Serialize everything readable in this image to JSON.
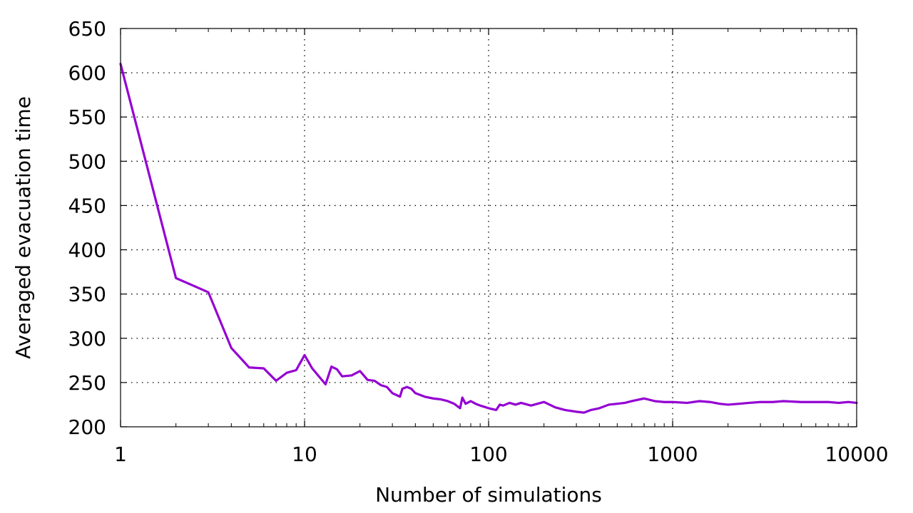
{
  "chart_data": {
    "type": "line",
    "title": "",
    "xlabel": "Number of simulations",
    "ylabel": "Averaged evacuation time",
    "xscale": "log",
    "xlim": [
      1,
      10000
    ],
    "ylim": [
      200,
      650
    ],
    "grid": true,
    "legend": "none",
    "line_color": "#9400D3",
    "x_ticks": [
      {
        "value": 1,
        "label": "1"
      },
      {
        "value": 10,
        "label": "10"
      },
      {
        "value": 100,
        "label": "100"
      },
      {
        "value": 1000,
        "label": "1000"
      },
      {
        "value": 10000,
        "label": "10000"
      }
    ],
    "y_ticks": [
      {
        "value": 200,
        "label": "200"
      },
      {
        "value": 250,
        "label": "250"
      },
      {
        "value": 300,
        "label": "300"
      },
      {
        "value": 350,
        "label": "350"
      },
      {
        "value": 400,
        "label": "400"
      },
      {
        "value": 450,
        "label": "450"
      },
      {
        "value": 500,
        "label": "500"
      },
      {
        "value": 550,
        "label": "550"
      },
      {
        "value": 600,
        "label": "600"
      },
      {
        "value": 650,
        "label": "650"
      }
    ],
    "series": [
      {
        "x": [
          1,
          2,
          3,
          4,
          5,
          6,
          7,
          8,
          9,
          10,
          11,
          13,
          14,
          15,
          16,
          18,
          20,
          22,
          24,
          26,
          28,
          30,
          33,
          34,
          36,
          38,
          40,
          45,
          50,
          55,
          60,
          65,
          70,
          72,
          75,
          80,
          85,
          90,
          100,
          110,
          115,
          120,
          130,
          140,
          150,
          170,
          200,
          230,
          260,
          300,
          330,
          360,
          400,
          450,
          500,
          550,
          600,
          700,
          800,
          900,
          1000,
          1200,
          1400,
          1600,
          1800,
          2000,
          2300,
          2600,
          3000,
          3500,
          4000,
          5000,
          6000,
          7000,
          8000,
          9000,
          10000
        ],
        "y": [
          610,
          368,
          352,
          289,
          267,
          266,
          252,
          261,
          264,
          281,
          266,
          248,
          268,
          265,
          257,
          258,
          263,
          253,
          252,
          247,
          245,
          238,
          234,
          243,
          245,
          243,
          238,
          234,
          232,
          231,
          229,
          226,
          221,
          233,
          226,
          229,
          226,
          224,
          221,
          219,
          225,
          224,
          227,
          225,
          227,
          224,
          228,
          222,
          219,
          217,
          216,
          219,
          221,
          225,
          226,
          227,
          229,
          232,
          229,
          228,
          228,
          227,
          229,
          228,
          226,
          225,
          226,
          227,
          228,
          228,
          229,
          228,
          228,
          228,
          227,
          228,
          227
        ]
      }
    ]
  }
}
